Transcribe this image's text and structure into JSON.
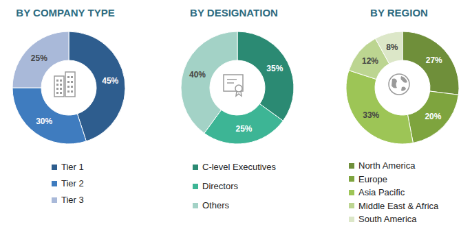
{
  "chart_data": [
    {
      "type": "pie",
      "title": "BY COMPANY TYPE",
      "categories": [
        "Tier 1",
        "Tier 2",
        "Tier 3"
      ],
      "values": [
        45,
        30,
        25
      ],
      "value_labels": [
        "45%",
        "30%",
        "25%"
      ],
      "colors": [
        "#2e5d8e",
        "#3f7cbf",
        "#a9b9d9"
      ],
      "data_labels": true
    },
    {
      "type": "pie",
      "title": "BY DESIGNATION",
      "categories": [
        "C-level Executives",
        "Directors",
        "Others"
      ],
      "values": [
        35,
        25,
        40
      ],
      "value_labels": [
        "35%",
        "25%",
        "40%"
      ],
      "colors": [
        "#2b8a73",
        "#3db595",
        "#a3d2c6"
      ],
      "data_labels": true
    },
    {
      "type": "pie",
      "title": "BY REGION",
      "categories": [
        "North America",
        "Europe",
        "Asia Pacific",
        "Middle East & Africa",
        "South America"
      ],
      "values": [
        27,
        20,
        33,
        12,
        8
      ],
      "value_labels": [
        "27%",
        "20%",
        "33%",
        "12%",
        "8%"
      ],
      "colors": [
        "#6f8f3a",
        "#7ea43e",
        "#9dc556",
        "#bcd591",
        "#dce7c8"
      ],
      "data_labels": true
    }
  ]
}
